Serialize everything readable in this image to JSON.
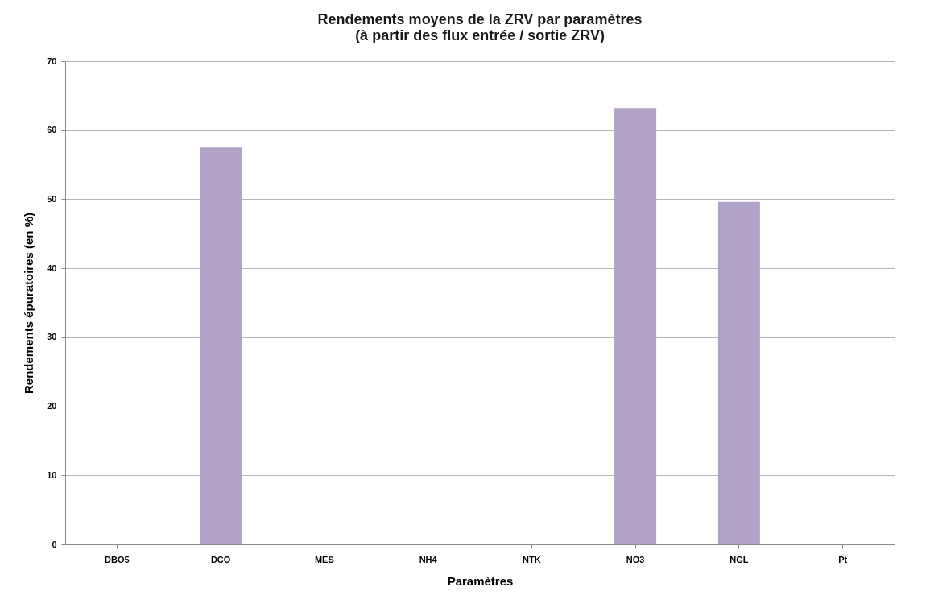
{
  "chart_data": {
    "type": "bar",
    "title": [
      "Rendements moyens de la ZRV par paramètres",
      "(à partir des flux entrée / sortie ZRV)"
    ],
    "xlabel": "Paramètres",
    "ylabel": "Rendements épuratoires  (en %)",
    "categories": [
      "DBO5",
      "DCO",
      "MES",
      "NH4",
      "NTK",
      "NO3",
      "NGL",
      "Pt"
    ],
    "values": [
      null,
      57.5,
      null,
      null,
      null,
      63.2,
      49.6,
      null
    ],
    "color": "#b1a2c7",
    "ylim": [
      0,
      70
    ],
    "yticks": [
      0,
      10,
      20,
      30,
      40,
      50,
      60,
      70
    ],
    "grid": "y"
  }
}
